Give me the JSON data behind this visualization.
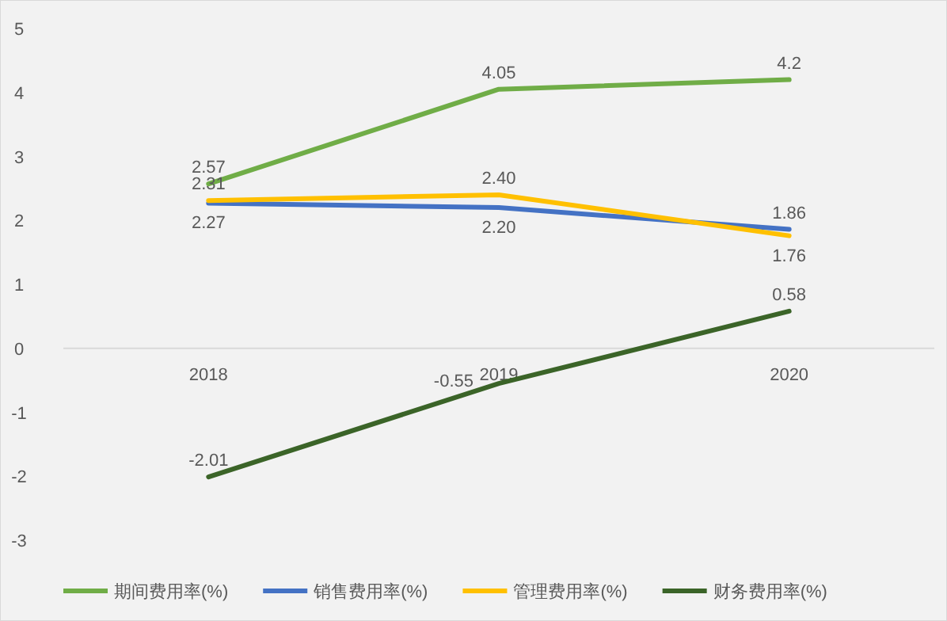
{
  "chart_data": {
    "type": "line",
    "categories": [
      "2018",
      "2019",
      "2020"
    ],
    "ylim": [
      -3,
      5
    ],
    "yticks": [
      -3,
      -2,
      -1,
      0,
      1,
      2,
      3,
      4,
      5
    ],
    "grid": false,
    "legend": "bottom",
    "marker": "none",
    "line_style": "solid",
    "series": [
      {
        "name": "期间费用率(%)",
        "color": "#70ad47",
        "values": [
          2.57,
          4.05,
          4.2
        ],
        "value_labels": [
          "2.57",
          "4.05",
          "4.2"
        ]
      },
      {
        "name": "销售费用率(%)",
        "color": "#4472c4",
        "values": [
          2.27,
          2.2,
          1.86
        ],
        "value_labels": [
          "2.27",
          "2.20",
          "1.86"
        ]
      },
      {
        "name": "管理费用率(%)",
        "color": "#ffc000",
        "values": [
          2.31,
          2.4,
          1.76
        ],
        "value_labels": [
          "2.31",
          "2.40",
          "1.76"
        ]
      },
      {
        "name": "财务费用率(%)",
        "color": "#3b6428",
        "values": [
          -2.01,
          -0.55,
          0.58
        ],
        "value_labels": [
          "-2.01",
          "-0.55",
          "0.58"
        ]
      }
    ]
  }
}
